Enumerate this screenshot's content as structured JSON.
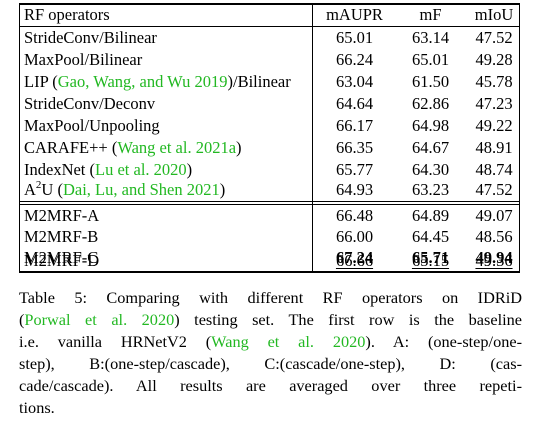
{
  "table": {
    "headers": [
      "RF operators",
      "mAUPR",
      "mF",
      "mIoU"
    ],
    "baseline_rows": [
      {
        "op": "StrideConv/Bilinear",
        "mAUPR": "65.01",
        "mF": "63.14",
        "mIoU": "47.52"
      },
      {
        "op": "MaxPool/Bilinear",
        "mAUPR": "66.24",
        "mF": "65.01",
        "mIoU": "49.28"
      },
      {
        "op_pre": "LIP (",
        "cite": "Gao, Wang, and Wu 2019",
        "op_post": ")/Bilinear",
        "mAUPR": "63.04",
        "mF": "61.50",
        "mIoU": "45.78"
      },
      {
        "op": "StrideConv/Deconv",
        "mAUPR": "64.64",
        "mF": "62.86",
        "mIoU": "47.23"
      },
      {
        "op": "MaxPool/Unpooling",
        "mAUPR": "66.17",
        "mF": "64.98",
        "mIoU": "49.22"
      },
      {
        "op_pre": "CARAFE++ (",
        "cite": "Wang et al. 2021a",
        "op_post": ")",
        "mAUPR": "66.35",
        "mF": "64.67",
        "mIoU": "48.91"
      },
      {
        "op_pre": "IndexNet (",
        "cite": "Lu et al. 2020",
        "op_post": ")",
        "mAUPR": "65.77",
        "mF": "64.30",
        "mIoU": "48.74"
      },
      {
        "op_pre": "A",
        "op_sup": "2",
        "op_mid": "U (",
        "cite": "Dai, Lu, and Shen 2021",
        "op_post": ")",
        "mAUPR": "64.93",
        "mF": "63.23",
        "mIoU": "47.52"
      }
    ],
    "ours_rows": [
      {
        "op": "M2MRF-A",
        "mAUPR": "66.48",
        "mF": "64.89",
        "mIoU": "49.07"
      },
      {
        "op": "M2MRF-B",
        "mAUPR": "66.00",
        "mF": "64.45",
        "mIoU": "48.56"
      },
      {
        "op": "M2MRF-C",
        "mAUPR": "67.24",
        "mF": "65.71",
        "mIoU": "49.94"
      },
      {
        "op": "M2MRF-D",
        "mAUPR": "66.66",
        "mF": "65.15",
        "mIoU": "49.36"
      }
    ]
  },
  "caption": {
    "l1": "Table 5: Comparing with different RF operators on IDRiD",
    "l2_pre": "(",
    "l2_cite": "Porwal et al. 2020",
    "l2_post": ") testing set. The first row is the baseline",
    "l3_pre": "i.e. vanilla HRNetV2 (",
    "l3_cite": "Wang et al. 2020",
    "l3_post": "). A: (one-step/one-",
    "l4": "step), B:(one-step/cascade), C:(cascade/one-step), D: (cas-",
    "l5": "cade/cascade). All results are averaged over three repeti-",
    "l6": "tions."
  }
}
